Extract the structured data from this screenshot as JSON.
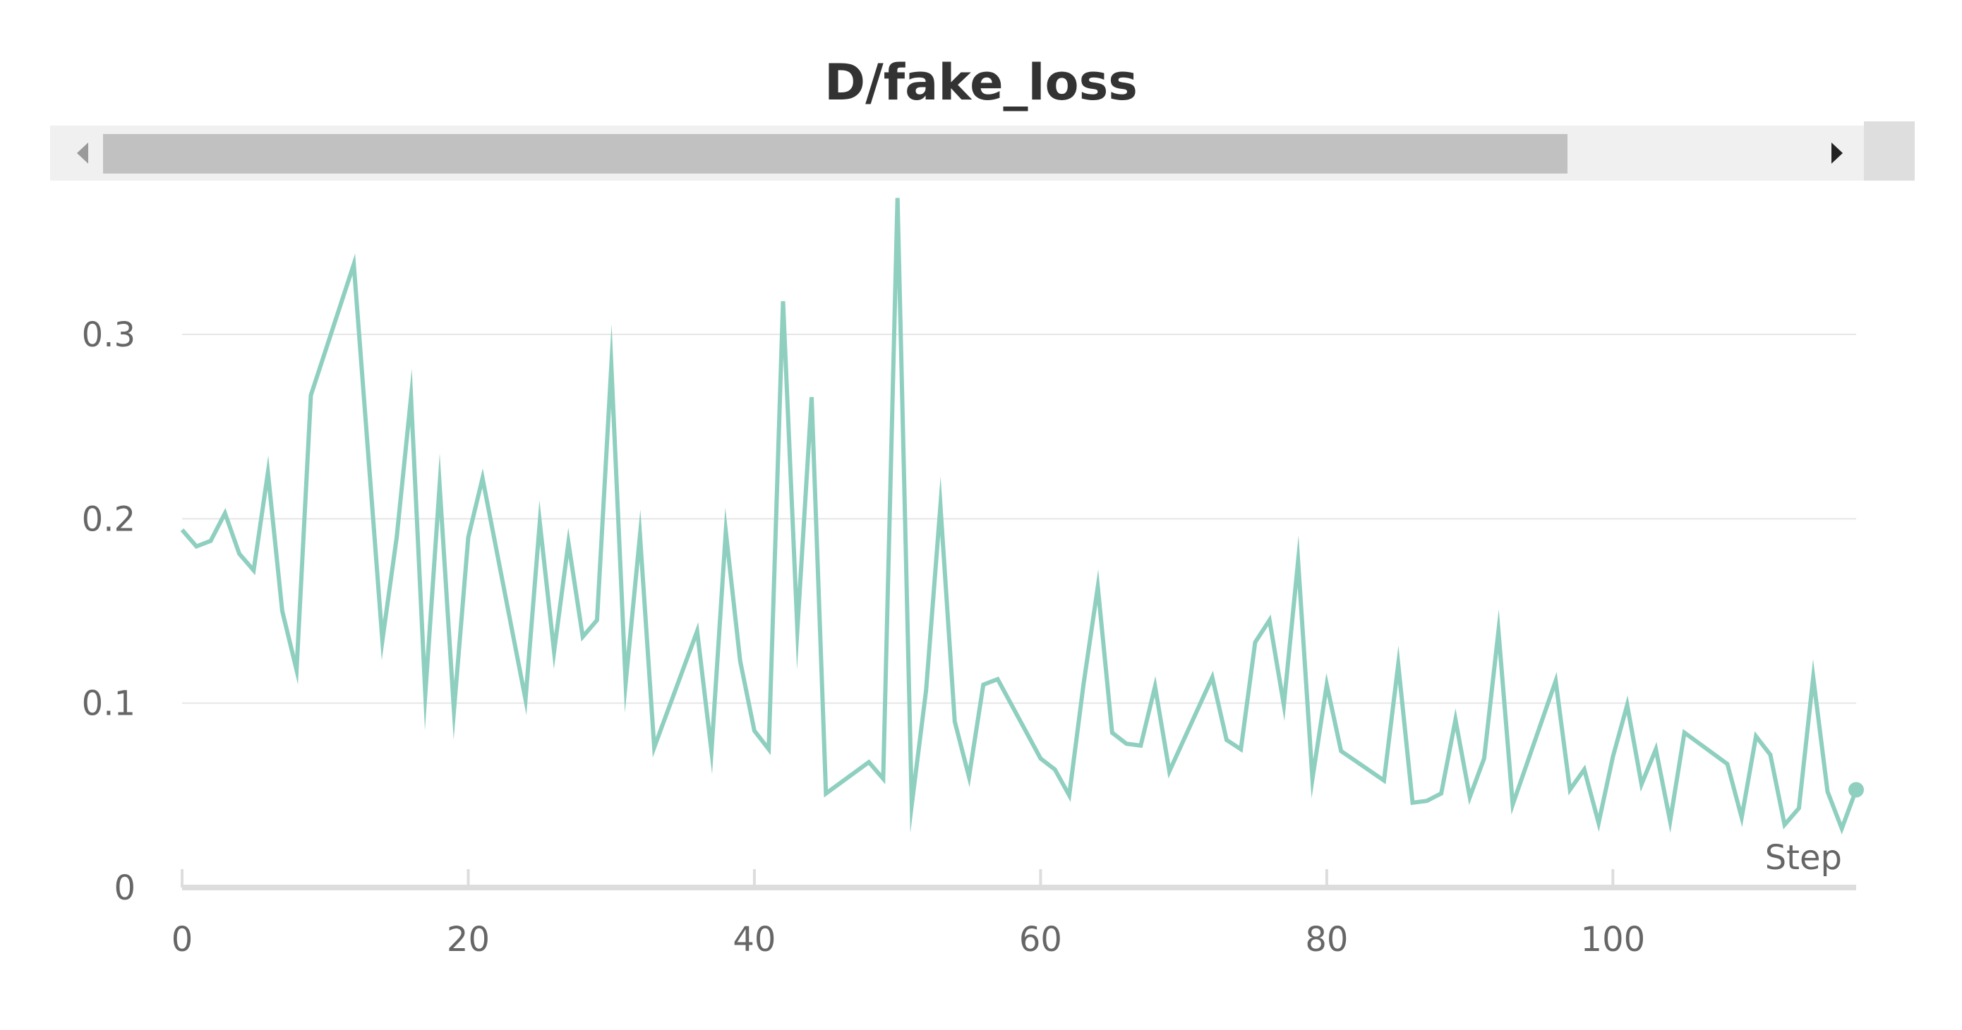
{
  "title": "D/fake_loss",
  "scrollbar": {
    "left_arrow": "scroll-left",
    "right_arrow": "scroll-right"
  },
  "colors": {
    "series": "#8ecfbf",
    "grid": "#e6e6e6",
    "axis": "#dddddd",
    "text": "#666666",
    "title": "#333333"
  },
  "chart_data": {
    "type": "line",
    "title": "D/fake_loss",
    "xlabel": "Step",
    "ylabel": "",
    "xlim": [
      0,
      117
    ],
    "ylim": [
      0,
      0.375
    ],
    "x_ticks": [
      "0",
      "20",
      "40",
      "60",
      "80",
      "100"
    ],
    "y_ticks": [
      "0",
      "0.1",
      "0.2",
      "0.3"
    ],
    "grid": true,
    "legend": "none",
    "series": [
      {
        "x": [
          0,
          1,
          2,
          3,
          4,
          5,
          6,
          7,
          8,
          9,
          12,
          14,
          15,
          16,
          17,
          18,
          19,
          20,
          21,
          24,
          25,
          26,
          27,
          28,
          29,
          30,
          31,
          32,
          33,
          36,
          37,
          38,
          39,
          40,
          41,
          42,
          43,
          44,
          45,
          48,
          49,
          50,
          51,
          52,
          53,
          54,
          55,
          56,
          57,
          60,
          61,
          62,
          63,
          64,
          65,
          66,
          67,
          68,
          69,
          72,
          73,
          74,
          75,
          76,
          77,
          78,
          79,
          80,
          81,
          84,
          85,
          86,
          87,
          88,
          89,
          90,
          91,
          92,
          93,
          96,
          97,
          98,
          99,
          100,
          101,
          102,
          103,
          104,
          105,
          108,
          109,
          110,
          111,
          112,
          113,
          114,
          115,
          116,
          117
        ],
        "y": [
          0.194,
          0.185,
          0.188,
          0.203,
          0.181,
          0.172,
          0.225,
          0.15,
          0.118,
          0.267,
          0.338,
          0.134,
          0.19,
          0.266,
          0.105,
          0.218,
          0.096,
          0.19,
          0.222,
          0.102,
          0.198,
          0.128,
          0.187,
          0.136,
          0.145,
          0.283,
          0.111,
          0.191,
          0.076,
          0.139,
          0.074,
          0.193,
          0.123,
          0.085,
          0.075,
          0.318,
          0.14,
          0.266,
          0.051,
          0.068,
          0.059,
          0.374,
          0.045,
          0.107,
          0.207,
          0.09,
          0.06,
          0.11,
          0.113,
          0.07,
          0.064,
          0.05,
          0.11,
          0.163,
          0.084,
          0.078,
          0.077,
          0.109,
          0.063,
          0.114,
          0.08,
          0.075,
          0.133,
          0.145,
          0.099,
          0.177,
          0.059,
          0.11,
          0.074,
          0.058,
          0.121,
          0.046,
          0.047,
          0.051,
          0.091,
          0.049,
          0.07,
          0.139,
          0.045,
          0.112,
          0.053,
          0.064,
          0.035,
          0.071,
          0.099,
          0.056,
          0.075,
          0.036,
          0.084,
          0.067,
          0.038,
          0.082,
          0.072,
          0.034,
          0.043,
          0.114,
          0.052,
          0.032,
          0.053
        ]
      }
    ]
  }
}
